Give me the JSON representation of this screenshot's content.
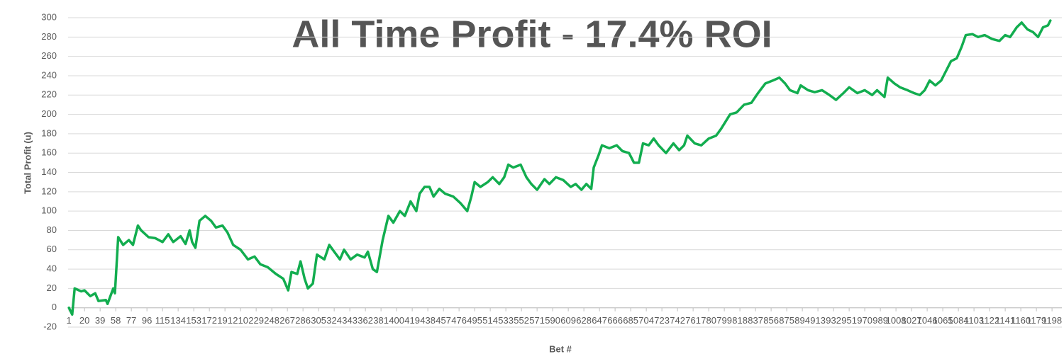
{
  "chart_data": {
    "type": "line",
    "title": "All Time Profit - 17.4% ROI",
    "x_label": "Bet #",
    "y_label": "Total Profit (u)",
    "color": "#12ad4f",
    "grid": true,
    "xlim": [
      0,
      1210
    ],
    "ylim": [
      -20,
      300
    ],
    "yticks": [
      -20,
      0,
      20,
      40,
      60,
      80,
      100,
      120,
      140,
      160,
      180,
      200,
      220,
      240,
      260,
      280,
      300
    ],
    "xticks": [
      1,
      20,
      39,
      58,
      77,
      96,
      115,
      134,
      153,
      172,
      191,
      210,
      229,
      248,
      267,
      286,
      305,
      324,
      343,
      362,
      381,
      400,
      419,
      438,
      457,
      476,
      495,
      514,
      533,
      552,
      571,
      590,
      609,
      628,
      647,
      666,
      685,
      704,
      723,
      742,
      761,
      780,
      799,
      818,
      837,
      856,
      875,
      894,
      913,
      932,
      951,
      970,
      989,
      1008,
      1027,
      1046,
      1065,
      1084,
      1103,
      1122,
      1141,
      1160,
      1179,
      1198
    ],
    "x": [
      1,
      5,
      8,
      16,
      20,
      27,
      33,
      37,
      46,
      48,
      55,
      57,
      61,
      67,
      74,
      79,
      85,
      89,
      98,
      106,
      115,
      122,
      128,
      137,
      143,
      148,
      151,
      155,
      160,
      167,
      174,
      180,
      188,
      194,
      201,
      210,
      219,
      227,
      234,
      243,
      253,
      262,
      268,
      272,
      279,
      283,
      288,
      292,
      298,
      303,
      312,
      318,
      324,
      331,
      336,
      344,
      352,
      361,
      365,
      371,
      376,
      383,
      390,
      396,
      404,
      410,
      417,
      424,
      428,
      434,
      440,
      445,
      452,
      459,
      469,
      478,
      486,
      491,
      495,
      502,
      511,
      517,
      525,
      531,
      536,
      542,
      551,
      558,
      564,
      571,
      580,
      586,
      594,
      603,
      612,
      618,
      625,
      631,
      637,
      640,
      646,
      650,
      659,
      668,
      675,
      683,
      689,
      695,
      700,
      707,
      713,
      719,
      728,
      737,
      744,
      750,
      754,
      763,
      771,
      780,
      789,
      795,
      806,
      814,
      823,
      832,
      840,
      849,
      858,
      866,
      873,
      879,
      888,
      892,
      901,
      909,
      918,
      927,
      935,
      944,
      951,
      961,
      970,
      979,
      985,
      994,
      998,
      1006,
      1013,
      1022,
      1030,
      1037,
      1043,
      1049,
      1056,
      1063,
      1069,
      1075,
      1082,
      1088,
      1093,
      1101,
      1108,
      1116,
      1125,
      1134,
      1141,
      1147,
      1155,
      1161,
      1168,
      1175,
      1181,
      1187,
      1193,
      1196
    ],
    "values": [
      0,
      -7,
      20,
      17,
      18,
      12,
      15,
      7,
      8,
      4,
      20,
      15,
      73,
      65,
      70,
      65,
      85,
      80,
      73,
      72,
      68,
      76,
      68,
      74,
      66,
      80,
      68,
      62,
      90,
      95,
      90,
      83,
      85,
      78,
      65,
      60,
      50,
      53,
      45,
      42,
      35,
      30,
      18,
      37,
      35,
      48,
      30,
      20,
      25,
      55,
      50,
      65,
      58,
      50,
      60,
      50,
      55,
      52,
      58,
      40,
      37,
      70,
      95,
      88,
      100,
      95,
      110,
      100,
      118,
      125,
      125,
      115,
      123,
      118,
      115,
      108,
      100,
      115,
      130,
      125,
      130,
      135,
      128,
      135,
      148,
      145,
      148,
      135,
      128,
      122,
      133,
      128,
      135,
      132,
      125,
      128,
      122,
      128,
      123,
      145,
      158,
      168,
      165,
      168,
      162,
      160,
      150,
      150,
      170,
      168,
      175,
      168,
      160,
      170,
      163,
      168,
      178,
      170,
      168,
      175,
      178,
      185,
      200,
      202,
      210,
      212,
      222,
      232,
      235,
      238,
      232,
      225,
      222,
      230,
      225,
      223,
      225,
      220,
      215,
      222,
      228,
      222,
      225,
      220,
      225,
      218,
      238,
      232,
      228,
      225,
      222,
      220,
      225,
      235,
      230,
      235,
      245,
      255,
      258,
      270,
      282,
      283,
      280,
      282,
      278,
      276,
      282,
      280,
      290,
      295,
      288,
      285,
      280,
      290,
      292,
      297
    ]
  }
}
